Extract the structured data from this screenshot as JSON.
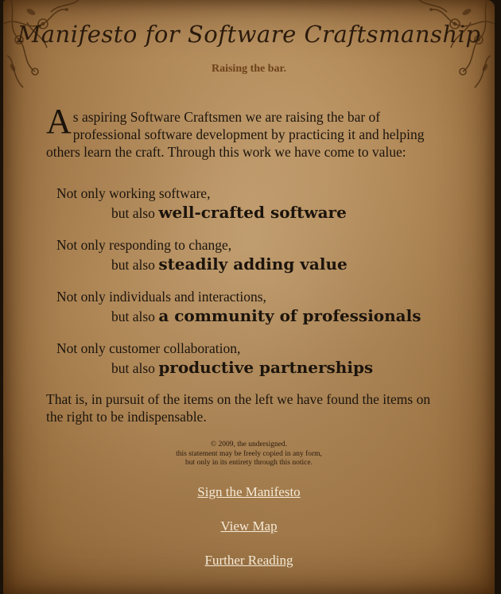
{
  "header": {
    "title": "Manifesto for Software Craftsmanship",
    "subtitle": "Raising the bar."
  },
  "intro": {
    "dropcap": "A",
    "text": "s aspiring Software Craftsmen we are raising the bar of professional software development by practicing it and helping others learn the craft. Through this work we have come to value:"
  },
  "values": [
    {
      "left": "Not only working software,",
      "prefix": "but also ",
      "right": "well-crafted software"
    },
    {
      "left": "Not only responding to change,",
      "prefix": "but also ",
      "right": "steadily adding value"
    },
    {
      "left": "Not only individuals and interactions,",
      "prefix": "but also ",
      "right": "a community of professionals"
    },
    {
      "left": "Not only customer collaboration,",
      "prefix": "but also ",
      "right": "productive partnerships"
    }
  ],
  "conclusion": "That is, in pursuit of the items on the left we have found the items on the right to be indispensable.",
  "notice": {
    "line1": "© 2009, the undersigned.",
    "line2": "this statement may be freely copied in any form,",
    "line3": "but only in its entirety through this notice."
  },
  "links": {
    "sign": "Sign the Manifesto",
    "map": "View Map",
    "reading": "Further Reading"
  },
  "colors": {
    "parchment": "#b58d5c",
    "text": "#1c140c",
    "subtitle": "#6b4219",
    "link": "#f5ead6"
  },
  "icons": {
    "corner": "floral-ornament-icon"
  }
}
